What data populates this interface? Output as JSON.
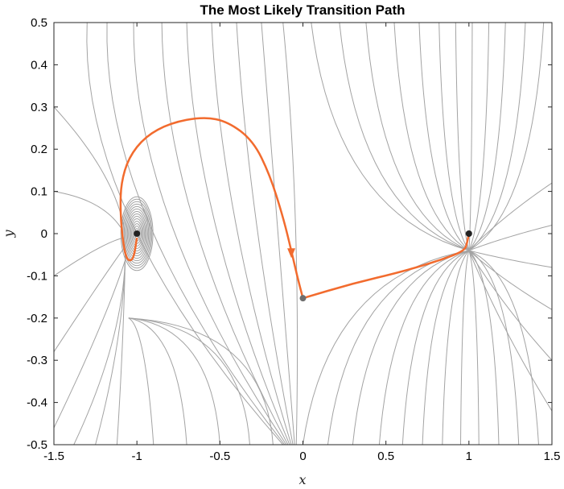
{
  "chart_data": {
    "type": "line",
    "title": "The Most Likely Transition Path",
    "xlabel": "x",
    "ylabel": "y",
    "xlim": [
      -1.5,
      1.5
    ],
    "ylim": [
      -0.5,
      0.5
    ],
    "xticks": [
      "-1.5",
      "-1",
      "-0.5",
      "0",
      "0.5",
      "1",
      "1.5"
    ],
    "yticks": [
      "0.5",
      "0.4",
      "0.3",
      "0.2",
      "0.1",
      "0",
      "-0.1",
      "-0.2",
      "-0.3",
      "-0.4",
      "-0.5"
    ],
    "grid": false,
    "colors": {
      "path": "#f26b2e",
      "streamlines": "#a3a3a3",
      "stable_point": "#222222",
      "saddle_point": "#6e6e6e"
    },
    "points": [
      {
        "name": "stable-left",
        "x": -1.0,
        "y": 0.0,
        "color": "#222222"
      },
      {
        "name": "stable-right",
        "x": 1.0,
        "y": 0.0,
        "color": "#222222"
      },
      {
        "name": "saddle",
        "x": 0.0,
        "y": -0.153,
        "color": "#6e6e6e"
      }
    ],
    "series": [
      {
        "points": [
          [
            -1.0,
            -0.01
          ],
          [
            -1.02,
            -0.06
          ],
          [
            -1.05,
            -0.065
          ],
          [
            -1.07,
            -0.05
          ],
          [
            -1.09,
            0.0
          ],
          [
            -1.1,
            0.06
          ],
          [
            -1.095,
            0.12
          ],
          [
            -1.05,
            0.18
          ],
          [
            -0.95,
            0.23
          ],
          [
            -0.8,
            0.262
          ],
          [
            -0.6,
            0.277
          ],
          [
            -0.45,
            0.265
          ],
          [
            -0.3,
            0.22
          ],
          [
            -0.2,
            0.14
          ],
          [
            -0.12,
            0.04
          ],
          [
            -0.07,
            -0.04
          ],
          [
            -0.035,
            -0.1
          ],
          [
            0.0,
            -0.153
          ]
        ]
      },
      {
        "points": [
          [
            0.0,
            -0.153
          ],
          [
            0.3,
            -0.118
          ],
          [
            0.6,
            -0.09
          ],
          [
            0.85,
            -0.06
          ],
          [
            0.975,
            -0.04
          ],
          [
            0.99,
            -0.02
          ],
          [
            1.0,
            0.0
          ]
        ]
      }
    ]
  }
}
